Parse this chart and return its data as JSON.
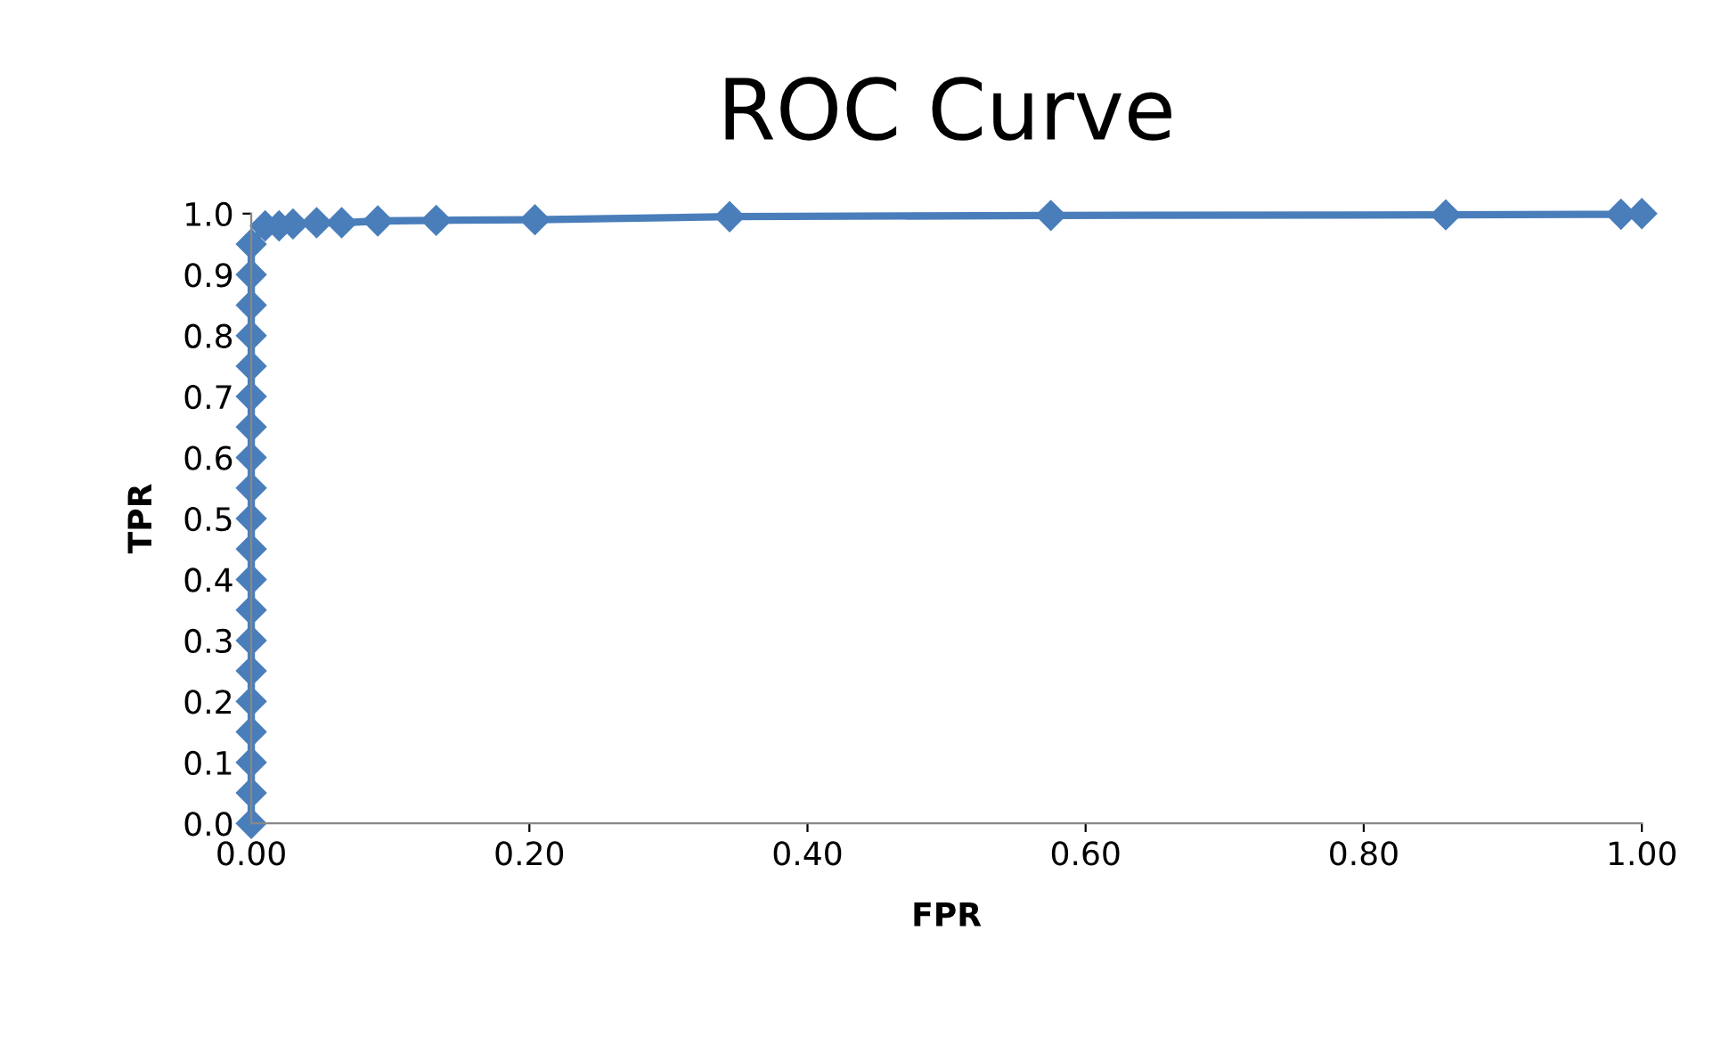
{
  "chart_data": {
    "type": "line",
    "title": "ROC Curve",
    "xlabel": "FPR",
    "ylabel": "TPR",
    "series": [
      {
        "color": "#4a7ebb",
        "x": [
          0,
          0,
          0,
          0,
          0,
          0,
          0,
          0,
          0,
          0,
          0,
          0,
          0,
          0,
          0,
          0,
          0,
          0,
          0,
          0,
          0.01,
          0.02,
          0.03,
          0.047,
          0.065,
          0.091,
          0.133,
          0.204,
          0.344,
          0.575,
          0.859,
          0.985,
          1.0
        ],
        "values": [
          0,
          0.05,
          0.1,
          0.15,
          0.2,
          0.25,
          0.3,
          0.35,
          0.4,
          0.45,
          0.5,
          0.55,
          0.6,
          0.65,
          0.7,
          0.75,
          0.8,
          0.85,
          0.9,
          0.95,
          0.98,
          0.98,
          0.983,
          0.985,
          0.985,
          0.988,
          0.989,
          0.99,
          0.995,
          0.997,
          0.998,
          0.999,
          1.0
        ]
      }
    ],
    "xlim": [
      0,
      1
    ],
    "ylim": [
      0,
      1
    ],
    "xticks": [
      {
        "value": 0,
        "label": "0.00"
      },
      {
        "value": 0.2,
        "label": "0.20"
      },
      {
        "value": 0.4,
        "label": "0.40"
      },
      {
        "value": 0.6,
        "label": "0.60"
      },
      {
        "value": 0.8,
        "label": "0.80"
      },
      {
        "value": 1,
        "label": "1.00"
      }
    ],
    "yticks": [
      {
        "value": 0,
        "label": "0.0"
      },
      0.1,
      0.2,
      0.3,
      0.4,
      0.5,
      0.6,
      0.7,
      0.8,
      0.9,
      {
        "value": 1,
        "label": "1.0"
      }
    ],
    "marker": "diamond",
    "line_style": "solid",
    "grid": false,
    "legend": false
  }
}
